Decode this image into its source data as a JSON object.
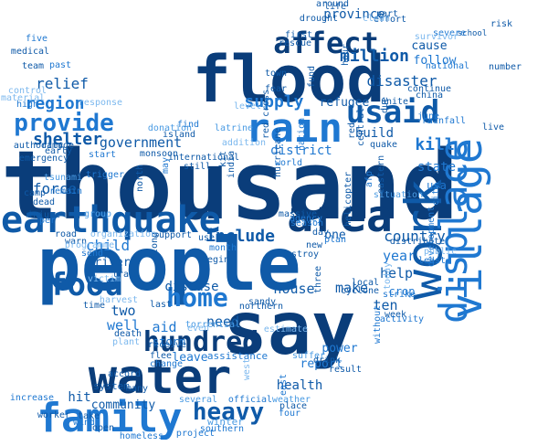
{
  "colors": {
    "darkest": "#0a3d7a",
    "dark": "#0f5aa8",
    "mid": "#1f78d1",
    "light": "#4a9be3",
    "pale": "#7cb8ee"
  },
  "words": [
    {
      "t": "thousand",
      "w": 100,
      "c": "darkest"
    },
    {
      "t": "people",
      "w": 90,
      "c": "dark"
    },
    {
      "t": "flood",
      "w": 84,
      "c": "darkest"
    },
    {
      "t": "water",
      "w": 80,
      "c": "darkest"
    },
    {
      "t": "say",
      "w": 76,
      "c": "darkest"
    },
    {
      "t": "earthquake",
      "w": 58,
      "c": "dark"
    },
    {
      "t": "area",
      "w": 58,
      "c": "darkest"
    },
    {
      "t": "rain",
      "w": 58,
      "c": "mid"
    },
    {
      "t": "family",
      "w": 52,
      "c": "mid"
    },
    {
      "t": "affect",
      "w": 46,
      "c": "darkest"
    },
    {
      "t": "usaid",
      "w": 46,
      "c": "dark"
    },
    {
      "t": "food",
      "w": 42,
      "c": "dark"
    },
    {
      "t": "home",
      "w": 40,
      "c": "mid"
    },
    {
      "t": "hundred",
      "w": 38,
      "c": "darkest"
    },
    {
      "t": "provide",
      "w": 32,
      "c": "mid"
    },
    {
      "t": "heavy",
      "w": 30,
      "c": "dark"
    },
    {
      "t": "province",
      "w": 20,
      "c": "dark"
    },
    {
      "t": "million",
      "w": 22,
      "c": "dark"
    },
    {
      "t": "disaster",
      "w": 20,
      "c": "dark"
    },
    {
      "t": "supply",
      "w": 22,
      "c": "mid"
    },
    {
      "t": "refugee",
      "w": 16,
      "c": "dark"
    },
    {
      "t": "kill",
      "w": 20,
      "c": "mid"
    },
    {
      "t": "build",
      "w": 18,
      "c": "dark"
    },
    {
      "t": "state",
      "w": 18,
      "c": "mid"
    },
    {
      "t": "country",
      "w": 20,
      "c": "dark"
    },
    {
      "t": "shelter",
      "w": 20,
      "c": "dark"
    },
    {
      "t": "relief",
      "w": 20,
      "c": "dark"
    },
    {
      "t": "region",
      "w": 22,
      "c": "mid"
    },
    {
      "t": "government",
      "w": 18,
      "c": "dark"
    },
    {
      "t": "district",
      "w": 18,
      "c": "mid"
    },
    {
      "t": "include",
      "w": 22,
      "c": "dark"
    },
    {
      "t": "force",
      "w": 18,
      "c": "dark"
    },
    {
      "t": "child",
      "w": 18,
      "c": "mid"
    },
    {
      "t": "disease",
      "w": 18,
      "c": "dark"
    },
    {
      "t": "house",
      "w": 18,
      "c": "dark"
    },
    {
      "t": "make",
      "w": 18,
      "c": "dark"
    },
    {
      "t": "one",
      "w": 16,
      "c": "dark"
    },
    {
      "t": "year",
      "w": 18,
      "c": "mid"
    },
    {
      "t": "help",
      "w": 18,
      "c": "dark"
    },
    {
      "t": "two",
      "w": 18,
      "c": "dark"
    },
    {
      "t": "need",
      "w": 18,
      "c": "dark"
    },
    {
      "t": "aid",
      "w": 18,
      "c": "mid"
    },
    {
      "t": "well",
      "w": 18,
      "c": "mid"
    },
    {
      "t": "leave",
      "w": 16,
      "c": "mid"
    },
    {
      "t": "power",
      "w": 16,
      "c": "mid"
    },
    {
      "t": "report",
      "w": 16,
      "c": "mid"
    },
    {
      "t": "health",
      "w": 16,
      "c": "dark"
    },
    {
      "t": "ten",
      "w": 18,
      "c": "dark"
    },
    {
      "t": "work",
      "w": 16,
      "c": "dark"
    },
    {
      "t": "usa",
      "w": 14,
      "c": "mid"
    },
    {
      "t": "cause",
      "w": 14,
      "c": "dark"
    },
    {
      "t": "follow",
      "w": 14,
      "c": "mid"
    },
    {
      "t": "continue",
      "w": 10,
      "c": "dark"
    },
    {
      "t": "community",
      "w": 14,
      "c": "dark"
    },
    {
      "t": "hit",
      "w": 16,
      "c": "dark"
    },
    {
      "t": "storm",
      "w": 14,
      "c": "mid"
    },
    {
      "t": "river",
      "w": 14,
      "c": "dark"
    },
    {
      "t": "assistance",
      "w": 12,
      "c": "mid"
    },
    {
      "t": "system",
      "w": 12,
      "c": "dark"
    },
    {
      "t": "winter",
      "w": 12,
      "c": "light"
    },
    {
      "t": "crop",
      "w": 14,
      "c": "mid"
    },
    {
      "t": "village",
      "w": 10,
      "c": "mid"
    },
    {
      "t": "displace",
      "w": 10,
      "c": "mid"
    },
    {
      "t": "quake",
      "w": 10,
      "c": "dark"
    },
    {
      "t": "destroy",
      "w": 10,
      "c": "dark"
    },
    {
      "t": "agency",
      "w": 10,
      "c": "mid"
    },
    {
      "t": "day",
      "w": 10,
      "c": "dark"
    },
    {
      "t": "international",
      "w": 10,
      "c": "dark"
    },
    {
      "t": "monsoon",
      "w": 10,
      "c": "dark"
    },
    {
      "t": "team",
      "w": 10,
      "c": "dark"
    },
    {
      "t": "medical",
      "w": 10,
      "c": "dark"
    },
    {
      "t": "authority",
      "w": 10,
      "c": "dark"
    },
    {
      "t": "emergency",
      "w": 10,
      "c": "dark"
    },
    {
      "t": "train",
      "w": 10,
      "c": "dark"
    },
    {
      "t": "support",
      "w": 10,
      "c": "dark"
    },
    {
      "t": "last",
      "w": 10,
      "c": "dark"
    },
    {
      "t": "sandy",
      "w": 10,
      "c": "dark"
    },
    {
      "t": "flee",
      "w": 10,
      "c": "dark"
    },
    {
      "t": "official",
      "w": 10,
      "c": "mid"
    },
    {
      "t": "weather",
      "w": 10,
      "c": "light"
    },
    {
      "t": "place",
      "w": 10,
      "c": "dark"
    },
    {
      "t": "take",
      "w": 10,
      "c": "dark"
    },
    {
      "t": "wind",
      "w": 10,
      "c": "mid"
    },
    {
      "t": "several",
      "w": 10,
      "c": "light"
    },
    {
      "t": "southern",
      "w": 10,
      "c": "mid"
    },
    {
      "t": "project",
      "w": 10,
      "c": "mid"
    },
    {
      "t": "rescue",
      "w": 10,
      "c": "dark"
    },
    {
      "t": "first",
      "w": 10,
      "c": "dark"
    },
    {
      "t": "drought",
      "w": 10,
      "c": "dark"
    },
    {
      "t": "school",
      "w": 10,
      "c": "dark"
    },
    {
      "t": "risk",
      "w": 10,
      "c": "dark"
    },
    {
      "t": "number",
      "w": 10,
      "c": "dark"
    },
    {
      "t": "national",
      "w": 10,
      "c": "mid"
    },
    {
      "t": "live",
      "w": 10,
      "c": "dark"
    },
    {
      "t": "rainfall",
      "w": 10,
      "c": "mid"
    },
    {
      "t": "five",
      "w": 10,
      "c": "mid"
    },
    {
      "t": "past",
      "w": 10,
      "c": "mid"
    },
    {
      "t": "high",
      "w": 10,
      "c": "mid"
    },
    {
      "t": "damage",
      "w": 10,
      "c": "dark"
    },
    {
      "t": "early",
      "w": 10,
      "c": "dark"
    },
    {
      "t": "camp",
      "w": 10,
      "c": "dark"
    },
    {
      "t": "dead",
      "w": 10,
      "c": "dark"
    },
    {
      "t": "injure",
      "w": 10,
      "c": "dark"
    },
    {
      "t": "per",
      "w": 10,
      "c": "mid"
    },
    {
      "t": "road",
      "w": 10,
      "c": "dark"
    },
    {
      "t": "warn",
      "w": 10,
      "c": "dark"
    },
    {
      "t": "send",
      "w": 10,
      "c": "mid"
    },
    {
      "t": "time",
      "w": 10,
      "c": "dark"
    },
    {
      "t": "death",
      "w": 10,
      "c": "dark"
    },
    {
      "t": "accord",
      "w": 10,
      "c": "dark"
    },
    {
      "t": "many",
      "w": 10,
      "c": "dark"
    },
    {
      "t": "increase",
      "w": 10,
      "c": "mid"
    },
    {
      "t": "worker",
      "w": 10,
      "c": "dark"
    },
    {
      "t": "open",
      "w": 10,
      "c": "dark"
    },
    {
      "t": "homeless",
      "w": 10,
      "c": "mid"
    },
    {
      "t": "receive",
      "w": 10,
      "c": "dark"
    },
    {
      "t": "suffer",
      "w": 10,
      "c": "light"
    },
    {
      "t": "drink",
      "w": 10,
      "c": "dark"
    },
    {
      "t": "result",
      "w": 10,
      "c": "dark"
    },
    {
      "t": "strike",
      "w": 10,
      "c": "mid"
    },
    {
      "t": "week",
      "w": 10,
      "c": "dark"
    },
    {
      "t": "local",
      "w": 10,
      "c": "dark"
    },
    {
      "t": "cyclone",
      "w": 10,
      "c": "dark"
    },
    {
      "t": "town",
      "w": 10,
      "c": "dark"
    },
    {
      "t": "fear",
      "w": 10,
      "c": "dark"
    },
    {
      "t": "fund",
      "w": 10,
      "c": "dark"
    },
    {
      "t": "hour",
      "w": 10,
      "c": "dark"
    },
    {
      "t": "due",
      "w": 10,
      "c": "dark"
    },
    {
      "t": "unite",
      "w": 10,
      "c": "dark"
    },
    {
      "t": "china",
      "w": 10,
      "c": "dark"
    },
    {
      "t": "around",
      "w": 10,
      "c": "dark"
    },
    {
      "t": "life",
      "w": 10,
      "c": "dark"
    },
    {
      "t": "part",
      "w": 10,
      "c": "dark"
    },
    {
      "t": "effort",
      "w": 10,
      "c": "dark"
    },
    {
      "t": "severe",
      "w": 10,
      "c": "mid"
    },
    {
      "t": "still",
      "w": 10,
      "c": "dark"
    },
    {
      "t": "island",
      "w": 10,
      "c": "dark"
    },
    {
      "t": "india",
      "w": 10,
      "c": "dark"
    },
    {
      "t": "north",
      "w": 10,
      "c": "dark"
    },
    {
      "t": "hurricane",
      "w": 10,
      "c": "dark"
    },
    {
      "t": "world",
      "w": 10,
      "c": "mid"
    },
    {
      "t": "massive",
      "w": 10,
      "c": "dark"
    },
    {
      "t": "season",
      "w": 10,
      "c": "mid"
    },
    {
      "t": "plan",
      "w": 10,
      "c": "mid"
    },
    {
      "t": "new",
      "w": 10,
      "c": "dark"
    },
    {
      "t": "begin",
      "w": 10,
      "c": "dark"
    },
    {
      "t": "northern",
      "w": 10,
      "c": "dark"
    },
    {
      "t": "month",
      "w": 10,
      "c": "mid"
    },
    {
      "t": "use",
      "w": 10,
      "c": "dark"
    },
    {
      "t": "along",
      "w": 10,
      "c": "dark"
    },
    {
      "t": "three",
      "w": 10,
      "c": "dark"
    },
    {
      "t": "red",
      "w": 10,
      "c": "dark"
    },
    {
      "t": "red cross",
      "w": 10,
      "c": "dark"
    },
    {
      "t": "latrine",
      "w": 10,
      "c": "light"
    },
    {
      "t": "nation",
      "w": 10,
      "c": "mid"
    },
    {
      "t": "kit",
      "w": 10,
      "c": "dark"
    },
    {
      "t": "central",
      "w": 10,
      "c": "dark"
    },
    {
      "t": "eastern",
      "w": 10,
      "c": "dark"
    },
    {
      "t": "helicopter",
      "w": 10,
      "c": "dark"
    },
    {
      "t": "distribute",
      "w": 10,
      "c": "dark"
    },
    {
      "t": "development",
      "w": 10,
      "c": "mid"
    },
    {
      "t": "public",
      "w": 8,
      "c": "pale"
    },
    {
      "t": "city",
      "w": 8,
      "c": "mid"
    },
    {
      "t": "situation",
      "w": 8,
      "c": "light"
    },
    {
      "t": "estimate",
      "w": 8,
      "c": "pale"
    },
    {
      "t": "torrential",
      "w": 8,
      "c": "light"
    },
    {
      "t": "even",
      "w": 8,
      "c": "pale"
    },
    {
      "t": "plant",
      "w": 8,
      "c": "pale"
    },
    {
      "t": "harvest",
      "w": 8,
      "c": "pale"
    },
    {
      "t": "victim",
      "w": 8,
      "c": "pale"
    },
    {
      "t": "organization",
      "w": 8,
      "c": "pale"
    },
    {
      "t": "group",
      "w": 8,
      "c": "light"
    },
    {
      "t": "programme",
      "w": 8,
      "c": "pale"
    },
    {
      "t": "tsunami",
      "w": 8,
      "c": "light"
    },
    {
      "t": "remain",
      "w": 8,
      "c": "mid"
    },
    {
      "t": "trigger",
      "w": 8,
      "c": "mid"
    },
    {
      "t": "start",
      "w": 8,
      "c": "mid"
    },
    {
      "t": "may",
      "w": 8,
      "c": "mid"
    },
    {
      "t": "find",
      "w": 8,
      "c": "mid"
    },
    {
      "t": "donation",
      "w": 8,
      "c": "light"
    },
    {
      "t": "response",
      "w": 8,
      "c": "pale"
    },
    {
      "t": "control",
      "w": 8,
      "c": "pale"
    },
    {
      "t": "material",
      "w": 8,
      "c": "pale"
    },
    {
      "t": "survivor",
      "w": 8,
      "c": "pale"
    },
    {
      "t": "clean",
      "w": 8,
      "c": "pale"
    },
    {
      "t": "level",
      "w": 8,
      "c": "pale"
    },
    {
      "t": "addition",
      "w": 7,
      "c": "pale"
    },
    {
      "t": "afp",
      "w": 8,
      "c": "mid"
    },
    {
      "t": "june",
      "w": 8,
      "c": "mid"
    },
    {
      "t": "least",
      "w": 8,
      "c": "mid"
    },
    {
      "t": "without",
      "w": 8,
      "c": "mid"
    },
    {
      "t": "today",
      "w": 8,
      "c": "pale"
    },
    {
      "t": "activity",
      "w": 8,
      "c": "mid"
    },
    {
      "t": "change",
      "w": 8,
      "c": "mid"
    },
    {
      "t": "west",
      "w": 8,
      "c": "pale"
    },
    {
      "t": "east",
      "w": 8,
      "c": "mid"
    },
    {
      "t": "four",
      "w": 8,
      "c": "mid"
    },
    {
      "t": "others",
      "w": 8,
      "c": "mid"
    },
    {
      "t": "see",
      "w": 8,
      "c": "mid"
    }
  ]
}
